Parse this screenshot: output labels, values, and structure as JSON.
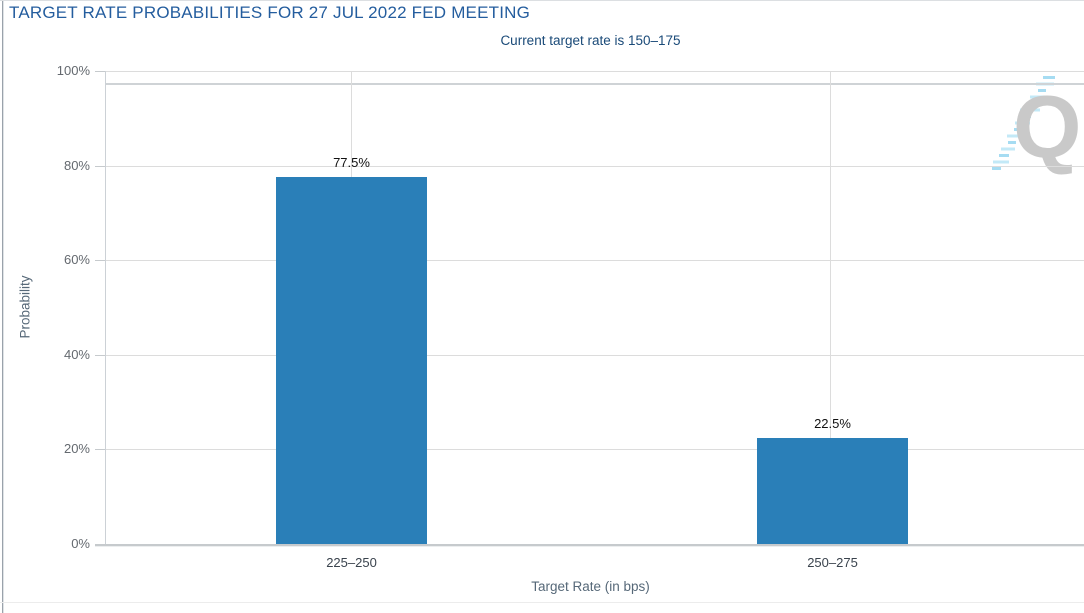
{
  "chart_data": {
    "type": "bar",
    "title": "TARGET RATE PROBABILITIES FOR 27 JUL 2022 FED MEETING",
    "subtitle": "Current target rate is 150–175",
    "categories": [
      "225–250",
      "250–275"
    ],
    "values": [
      77.5,
      22.5
    ],
    "data_labels": [
      "77.5%",
      "22.5%"
    ],
    "xlabel": "Target Rate (in bps)",
    "ylabel": "Probability",
    "ylim": [
      0,
      100
    ],
    "yticks": [
      "0%",
      "20%",
      "40%",
      "60%",
      "80%",
      "100%"
    ],
    "grid": true,
    "legend": "none",
    "bar_color": "#2a7fb8",
    "title_color": "#245d9e",
    "subtitle_color": "#1a4a78"
  },
  "toolbar": {
    "menu_icon": "hamburger-icon"
  },
  "watermark": {
    "letter": "Q"
  }
}
